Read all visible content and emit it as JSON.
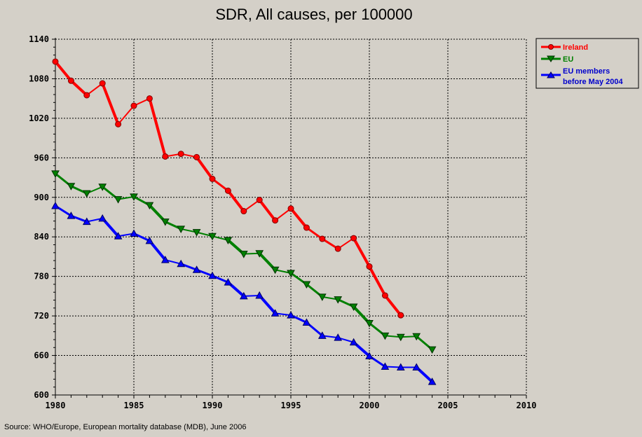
{
  "chart_data": {
    "type": "line",
    "title": "SDR, All causes, per 100000",
    "xlabel": "",
    "ylabel": "",
    "xlim": [
      1980,
      2010
    ],
    "ylim": [
      600,
      1140
    ],
    "xticks": [
      "1980",
      "1985",
      "1990",
      "1995",
      "2000",
      "2005",
      "2010"
    ],
    "yticks": [
      "600",
      "660",
      "720",
      "780",
      "840",
      "900",
      "960",
      "1020",
      "1080",
      "1140"
    ],
    "grid": true,
    "legend_position": "top-right",
    "series": [
      {
        "name": "Ireland",
        "color": "#ff0000",
        "marker": "circle",
        "x": [
          1980,
          1981,
          1982,
          1983,
          1984,
          1985,
          1986,
          1987,
          1988,
          1989,
          1990,
          1991,
          1992,
          1993,
          1994,
          1995,
          1996,
          1997,
          1998,
          1999,
          2000,
          2001,
          2002
        ],
        "values": [
          1106,
          1077,
          1055,
          1073,
          1011,
          1039,
          1050,
          962,
          966,
          961,
          928,
          910,
          879,
          896,
          865,
          883,
          854,
          837,
          822,
          838,
          795,
          751,
          721
        ]
      },
      {
        "name": "EU",
        "color": "#008000",
        "marker": "triangle-down",
        "x": [
          1980,
          1981,
          1982,
          1983,
          1984,
          1985,
          1986,
          1987,
          1988,
          1989,
          1990,
          1991,
          1992,
          1993,
          1994,
          1995,
          1996,
          1997,
          1998,
          1999,
          2000,
          2001,
          2002,
          2003,
          2004
        ],
        "values": [
          936,
          917,
          906,
          916,
          897,
          901,
          888,
          863,
          852,
          847,
          841,
          835,
          814,
          815,
          790,
          785,
          768,
          749,
          745,
          734,
          709,
          690,
          688,
          689,
          669
        ]
      },
      {
        "name": "EU members before May 2004",
        "legend_lines": [
          "EU members",
          "before May 2004"
        ],
        "color": "#0000ff",
        "marker": "triangle-up",
        "x": [
          1980,
          1981,
          1982,
          1983,
          1984,
          1985,
          1986,
          1987,
          1988,
          1989,
          1990,
          1991,
          1992,
          1993,
          1994,
          1995,
          1996,
          1997,
          1998,
          1999,
          2000,
          2001,
          2002,
          2003,
          2004
        ],
        "values": [
          887,
          872,
          863,
          868,
          841,
          845,
          834,
          805,
          799,
          790,
          781,
          771,
          750,
          751,
          724,
          721,
          710,
          690,
          687,
          680,
          659,
          643,
          642,
          642,
          620
        ]
      }
    ],
    "source": "Source: WHO/Europe, European mortality database (MDB), June 2006"
  }
}
